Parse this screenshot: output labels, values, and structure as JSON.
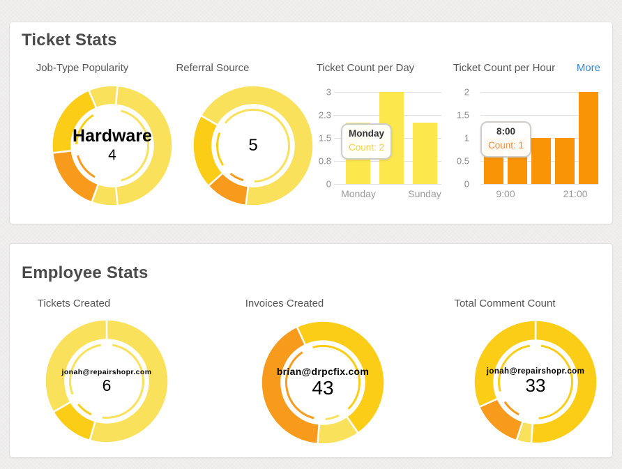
{
  "colors": {
    "pale_yellow": "#FAE15C",
    "gold": "#FBCD17",
    "orange": "#F89B1C",
    "bar_yellow": "#FCE74D",
    "bar_orange": "#F89406",
    "link_blue": "#3787D8",
    "tooltip_day_value": "#EDD33F",
    "tooltip_hour_value": "#F58B3D",
    "heading_text": "#4A4A4A",
    "axis_text": "#8C8C8C"
  },
  "ticket_stats": {
    "heading": "Ticket Stats",
    "more_link": "More"
  },
  "employee_stats": {
    "heading": "Employee Stats"
  },
  "chart_data": [
    {
      "type": "pie",
      "donut": true,
      "title": "Job-Type Popularity",
      "center_label": "Hardware",
      "center_value": "4",
      "note": "segment values unlabeled; angles estimated from pixels; hovered segment 'Hardware' count 4",
      "start_deg": 5,
      "segments": [
        {
          "label": "Hardware",
          "color": "#FAE15C",
          "deg": 170,
          "pct": 47
        },
        {
          "color": "#FAE15C",
          "deg": 25,
          "pct": 7
        },
        {
          "color": "#F89B1C",
          "deg": 63,
          "pct": 18
        },
        {
          "color": "#FBCD17",
          "deg": 74,
          "pct": 21
        },
        {
          "color": "#FAE15C",
          "deg": 28,
          "pct": 8
        }
      ]
    },
    {
      "type": "pie",
      "donut": true,
      "title": "Referral Source",
      "center_label": "",
      "center_value": "5",
      "note": "segment values unlabeled; angles estimated from pixels; hovered segment count 5",
      "start_deg": 300,
      "segments": [
        {
          "color": "#FAE15C",
          "deg": 247,
          "pct": 69
        },
        {
          "color": "#F89B1C",
          "deg": 41,
          "pct": 11
        },
        {
          "color": "#FBCD17",
          "deg": 72,
          "pct": 20
        }
      ]
    },
    {
      "type": "bar",
      "title": "Ticket Count per Day",
      "categories": [
        "Monday",
        "",
        "Sunday"
      ],
      "values": [
        2,
        3,
        2
      ],
      "bar_color": "#FCE74D",
      "ylim": [
        0,
        3
      ],
      "y_ticks": [
        {
          "label": "3",
          "value": 3
        },
        {
          "label": "2.3",
          "value": 2.25
        },
        {
          "label": "1.5",
          "value": 1.5
        },
        {
          "label": "0.8",
          "value": 0.75
        },
        {
          "label": "0",
          "value": 0
        }
      ],
      "grid": true,
      "legend": "none",
      "tooltip": {
        "title": "Monday",
        "text": "Count: 2"
      }
    },
    {
      "type": "bar",
      "title": "Ticket Count per Hour",
      "categories": [
        "",
        "9:00",
        "",
        "",
        "21:00"
      ],
      "values": [
        1,
        1,
        1,
        1,
        2
      ],
      "bar_color": "#F89406",
      "ylim": [
        0,
        2
      ],
      "y_ticks": [
        {
          "label": "2",
          "value": 2
        },
        {
          "label": "1.5",
          "value": 1.5
        },
        {
          "label": "1",
          "value": 1
        },
        {
          "label": "0.5",
          "value": 0.5
        },
        {
          "label": "0",
          "value": 0
        }
      ],
      "grid": true,
      "legend": "none",
      "tooltip": {
        "title": "8:00",
        "text": "Count: 1"
      }
    },
    {
      "type": "pie",
      "donut": true,
      "title": "Tickets Created",
      "center_label": "jonah@repairshopr.com",
      "center_value": "6",
      "note": "segment values unlabeled; angles estimated from pixels; hovered employee count 6",
      "start_deg": 0,
      "segments": [
        {
          "color": "#FAE15C",
          "deg": 196,
          "pct": 54
        },
        {
          "color": "#FBCD17",
          "deg": 44,
          "pct": 12
        },
        {
          "color": "#FAE15C",
          "deg": 120,
          "pct": 34
        }
      ]
    },
    {
      "type": "pie",
      "donut": true,
      "title": "Invoices Created",
      "center_label": "brian@drpcfix.com",
      "center_value": "43",
      "note": "segment values unlabeled; angles estimated from pixels; hovered employee count 43",
      "start_deg": 335,
      "segments": [
        {
          "color": "#FBCD17",
          "deg": 170,
          "pct": 47
        },
        {
          "color": "#FAE15C",
          "deg": 40,
          "pct": 11
        },
        {
          "color": "#F89B1C",
          "deg": 150,
          "pct": 42
        }
      ]
    },
    {
      "type": "pie",
      "donut": true,
      "title": "Total Comment Count",
      "center_label": "jonah@repairshopr.com",
      "center_value": "33",
      "note": "segment values unlabeled; angles estimated from pixels; hovered employee count 33",
      "start_deg": 0,
      "segments": [
        {
          "color": "#FBCD17",
          "deg": 184,
          "pct": 51
        },
        {
          "color": "#FAE15C",
          "deg": 14,
          "pct": 4
        },
        {
          "color": "#F89B1C",
          "deg": 48,
          "pct": 13
        },
        {
          "color": "#FBCD17",
          "deg": 114,
          "pct": 32
        }
      ]
    }
  ]
}
